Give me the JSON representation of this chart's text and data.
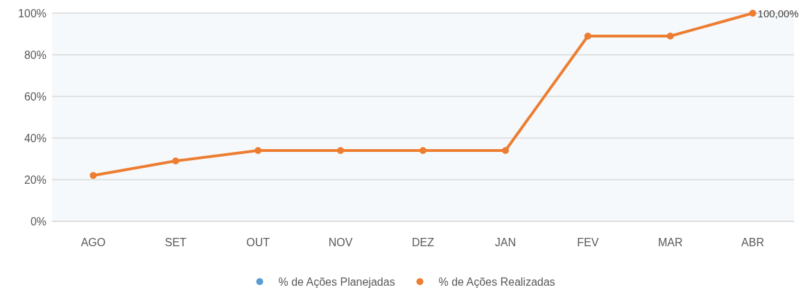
{
  "chart_data": {
    "type": "line",
    "categories": [
      "AGO",
      "SET",
      "OUT",
      "NOV",
      "DEZ",
      "JAN",
      "FEV",
      "MAR",
      "ABR"
    ],
    "series": [
      {
        "name": "% de Ações Planejadas",
        "color": "#5b9bd5",
        "values": [
          null,
          null,
          null,
          null,
          null,
          null,
          null,
          null,
          null
        ]
      },
      {
        "name": "% de Ações Realizadas",
        "color": "#ed7d31",
        "values": [
          22,
          29,
          34,
          34,
          34,
          34,
          89,
          89,
          100
        ],
        "value_labels": [
          null,
          null,
          null,
          null,
          null,
          null,
          null,
          null,
          "100,00%"
        ]
      }
    ],
    "ylim": [
      0,
      100
    ],
    "yticks": [
      {
        "value": 0,
        "label": "0%"
      },
      {
        "value": 20,
        "label": "20%"
      },
      {
        "value": 40,
        "label": "40%"
      },
      {
        "value": 60,
        "label": "60%"
      },
      {
        "value": 80,
        "label": "80%"
      },
      {
        "value": 100,
        "label": "100%"
      }
    ],
    "grid": "y",
    "legend": "bottom",
    "marker": "circle",
    "line_style": "solid"
  }
}
